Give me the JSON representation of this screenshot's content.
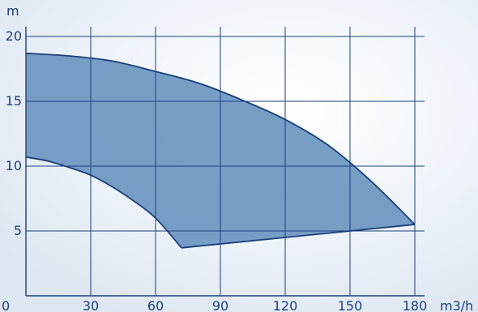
{
  "chart_data": {
    "type": "area",
    "title": "",
    "xlabel": "m3/h",
    "ylabel": "m",
    "xlim": [
      0,
      180
    ],
    "ylim": [
      0,
      20
    ],
    "x_ticks": [
      0,
      30,
      60,
      90,
      120,
      150,
      180
    ],
    "y_ticks": [
      5,
      10,
      15,
      20
    ],
    "x_tick_labels": [
      "0",
      "30",
      "60",
      "90",
      "120",
      "150",
      "180"
    ],
    "y_tick_labels": [
      "5",
      "10",
      "15",
      "20"
    ],
    "grid": true,
    "legend": "none",
    "series": [
      {
        "role": "upper-boundary",
        "x": [
          0,
          20,
          40,
          60,
          80,
          100,
          120,
          140,
          160,
          180
        ],
        "y": [
          18.7,
          18.5,
          18.1,
          17.3,
          16.4,
          15.1,
          13.6,
          11.6,
          8.8,
          5.5
        ]
      },
      {
        "role": "lower-boundary",
        "x": [
          0,
          10,
          20,
          30,
          40,
          50,
          60,
          72
        ],
        "y": [
          10.7,
          10.4,
          9.9,
          9.3,
          8.4,
          7.3,
          6.0,
          3.7
        ]
      },
      {
        "role": "bottom-boundary",
        "x": [
          72,
          180
        ],
        "y": [
          3.7,
          5.5
        ]
      }
    ],
    "colors": {
      "fill": "#6b96c0",
      "stroke": "#1a3f7a",
      "grid": "#1e3f7a",
      "text": "#1e3f7a",
      "background": "#eaf0f7"
    }
  }
}
